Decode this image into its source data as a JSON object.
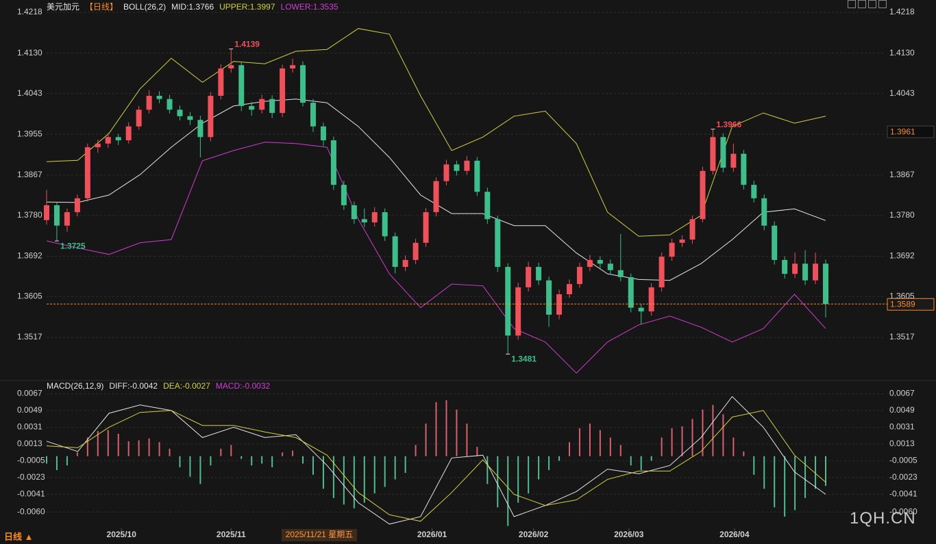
{
  "chart_data": [
    {
      "type": "candlestick",
      "title": "美元加元",
      "period": "【日线】",
      "indicator": "BOLL(26,2)",
      "up_color": "#f0505a",
      "down_color": "#3cbf8a",
      "open": [
        1.377,
        1.3802,
        1.3758,
        1.3787,
        1.3817,
        1.3927,
        1.3935,
        1.3949,
        1.3942,
        1.3972,
        1.4008,
        1.4038,
        1.4031,
        1.4008,
        1.3994,
        1.3986,
        1.3949,
        1.4038,
        1.4097,
        1.4104,
        1.4016,
        1.4008,
        1.4031,
        1.4001,
        1.4097,
        1.4104,
        1.4023,
        1.3972,
        1.3942,
        1.3846,
        1.3802,
        1.3772,
        1.3765,
        1.3787,
        1.3735,
        1.3669,
        1.3684,
        1.3721,
        1.3787,
        1.3854,
        1.389,
        1.3876,
        1.3898,
        1.3831,
        1.3772,
        1.3669,
        1.3521,
        1.3625,
        1.3669,
        1.364,
        1.3566,
        1.361,
        1.3632,
        1.3669,
        1.3684,
        1.3676,
        1.3662,
        1.3647,
        1.3581,
        1.3573,
        1.3625,
        1.3691,
        1.3721,
        1.3728,
        1.3772,
        1.3876,
        1.3949,
        1.3883,
        1.3913,
        1.3846,
        1.3817,
        1.3758,
        1.3684,
        1.3654,
        1.3676,
        1.364,
        1.3676
      ],
      "high": [
        1.3835,
        1.381,
        1.3795,
        1.3825,
        1.3935,
        1.3944,
        1.3958,
        1.3956,
        1.3981,
        1.4016,
        1.405,
        1.4048,
        1.404,
        1.4017,
        1.4003,
        1.3995,
        1.4046,
        1.4106,
        1.4139,
        1.4112,
        1.4025,
        1.404,
        1.4039,
        1.4105,
        1.4118,
        1.4112,
        1.4031,
        1.398,
        1.395,
        1.3855,
        1.381,
        1.3795,
        1.3798,
        1.3795,
        1.3743,
        1.3694,
        1.373,
        1.3796,
        1.3862,
        1.39,
        1.3898,
        1.3908,
        1.3906,
        1.384,
        1.378,
        1.3677,
        1.3635,
        1.368,
        1.3678,
        1.3648,
        1.362,
        1.3642,
        1.3678,
        1.3695,
        1.3692,
        1.3685,
        1.374,
        1.3655,
        1.359,
        1.3634,
        1.37,
        1.373,
        1.3737,
        1.378,
        1.3885,
        1.3966,
        1.3957,
        1.3935,
        1.3921,
        1.3855,
        1.3825,
        1.3767,
        1.3692,
        1.37,
        1.3705,
        1.37,
        1.3685
      ],
      "low": [
        1.376,
        1.3725,
        1.3745,
        1.3778,
        1.381,
        1.3915,
        1.3926,
        1.3932,
        1.3935,
        1.3965,
        1.4,
        1.4022,
        1.4,
        1.3985,
        1.3975,
        1.3905,
        1.394,
        1.403,
        1.4088,
        1.4005,
        1.3995,
        1.4,
        1.399,
        1.3992,
        1.4088,
        1.4015,
        1.396,
        1.393,
        1.3835,
        1.3792,
        1.3762,
        1.3755,
        1.3756,
        1.3725,
        1.3655,
        1.366,
        1.3675,
        1.3712,
        1.3778,
        1.3845,
        1.3866,
        1.3868,
        1.3822,
        1.3762,
        1.3658,
        1.3481,
        1.3512,
        1.3616,
        1.363,
        1.354,
        1.3556,
        1.3602,
        1.3624,
        1.366,
        1.3666,
        1.3652,
        1.3638,
        1.3571,
        1.3545,
        1.3564,
        1.3616,
        1.3682,
        1.3712,
        1.3719,
        1.3765,
        1.3868,
        1.3873,
        1.3874,
        1.3836,
        1.3808,
        1.3748,
        1.3674,
        1.3644,
        1.3645,
        1.363,
        1.3632,
        1.356
      ],
      "close": [
        1.3802,
        1.3758,
        1.3787,
        1.3817,
        1.3927,
        1.3935,
        1.3949,
        1.3942,
        1.3972,
        1.4008,
        1.4038,
        1.4031,
        1.4008,
        1.3994,
        1.3986,
        1.3949,
        1.4038,
        1.4097,
        1.4104,
        1.4016,
        1.4008,
        1.4031,
        1.4001,
        1.4097,
        1.4104,
        1.4023,
        1.3972,
        1.3942,
        1.3846,
        1.3802,
        1.3772,
        1.3765,
        1.3787,
        1.3735,
        1.3669,
        1.3684,
        1.3721,
        1.3787,
        1.3854,
        1.389,
        1.3876,
        1.3898,
        1.3831,
        1.3772,
        1.3669,
        1.3521,
        1.3625,
        1.3669,
        1.364,
        1.3566,
        1.361,
        1.3632,
        1.3669,
        1.3684,
        1.3676,
        1.3662,
        1.3647,
        1.3581,
        1.3573,
        1.3625,
        1.3691,
        1.3721,
        1.3728,
        1.3772,
        1.3876,
        1.3949,
        1.3883,
        1.3913,
        1.3846,
        1.3817,
        1.3758,
        1.3684,
        1.3654,
        1.3676,
        1.364,
        1.3676,
        1.3589
      ],
      "series": [
        {
          "name": "MID:1.3766",
          "color": "#e6e6e6",
          "values": [
            1.3809,
            1.3808,
            1.3824,
            1.3868,
            1.3927,
            1.3979,
            1.4016,
            1.4026,
            1.4031,
            1.4023,
            1.3972,
            1.3905,
            1.3824,
            1.3784,
            1.3784,
            1.3758,
            1.3758,
            1.3699,
            1.3654,
            1.3642,
            1.364,
            1.3676,
            1.3728,
            1.3787,
            1.3794,
            1.3769
          ]
        },
        {
          "name": "UPPER:1.3997",
          "color": "#d2d23c",
          "values": [
            1.3896,
            1.3899,
            1.3957,
            1.4053,
            1.4119,
            1.4067,
            1.4112,
            1.4107,
            1.4134,
            1.4138,
            1.4183,
            1.4171,
            1.4038,
            1.392,
            1.3949,
            1.3994,
            1.4005,
            1.3935,
            1.3787,
            1.3735,
            1.3738,
            1.378,
            1.3972,
            1.4001,
            1.3979,
            1.3994
          ]
        },
        {
          "name": "LOWER:1.3535",
          "color": "#d23cd2",
          "values": [
            1.3725,
            1.371,
            1.3696,
            1.3721,
            1.3728,
            1.3898,
            1.392,
            1.3938,
            1.3935,
            1.3927,
            1.3772,
            1.3654,
            1.3581,
            1.3632,
            1.3628,
            1.3536,
            1.3507,
            1.344,
            1.3507,
            1.3544,
            1.3563,
            1.3539,
            1.3507,
            1.3536,
            1.361,
            1.3536
          ]
        }
      ],
      "ylim": [
        1.3433,
        1.4218
      ],
      "yticks": [
        1.4218,
        {
          "value": 1.413,
          "label": "1.4130"
        },
        1.4043,
        1.3955,
        1.3867,
        {
          "value": 1.378,
          "label": "1.3780"
        },
        1.3692,
        1.3605,
        1.3517
      ],
      "grid": true,
      "crosshair_price": 1.3961
    },
    {
      "type": "macd",
      "title": "MACD(26,12,9)",
      "series": [
        {
          "name": "DIFF:-0.0042",
          "color": "#e6e6e6",
          "values": [
            0.0016,
            0.0005,
            0.0046,
            0.0055,
            0.0049,
            0.002,
            0.0031,
            0.002,
            0.0023,
            -0.001,
            -0.005,
            -0.0073,
            -0.0065,
            -0.0002,
            0.0001,
            -0.0065,
            -0.0053,
            -0.0038,
            -0.0014,
            -0.0019,
            -0.001,
            0.002,
            0.0064,
            0.0031,
            -0.0017,
            -0.0041
          ]
        },
        {
          "name": "DEA:-0.0027",
          "color": "#d2d23c",
          "values": [
            0.0011,
            0.0009,
            0.0031,
            0.0047,
            0.0049,
            0.0033,
            0.0033,
            0.0026,
            0.002,
            0.0001,
            -0.0039,
            -0.0063,
            -0.007,
            -0.0039,
            -0.0004,
            -0.0041,
            -0.0053,
            -0.0047,
            -0.0025,
            -0.0016,
            -0.0016,
            0.0005,
            0.0042,
            0.0049,
            0.0001,
            -0.0028
          ]
        }
      ],
      "histogram": {
        "name": "MACD:-0.0032",
        "color": "#d23cd2",
        "up_color": "#d9606c",
        "down_color": "#4cbf92",
        "values": [
          -0.0008,
          -0.0015,
          -0.001,
          0.0004,
          0.002,
          0.0027,
          0.0028,
          0.0024,
          0.0016,
          0.0017,
          0.0019,
          0.0015,
          0.0008,
          -0.0012,
          -0.0022,
          -0.003,
          -0.001,
          0.0008,
          0.0012,
          -0.0003,
          -0.001,
          -0.0008,
          -0.0012,
          0.0004,
          0.0006,
          -0.0008,
          -0.002,
          -0.0035,
          -0.0045,
          -0.0052,
          -0.0056,
          -0.005,
          -0.004,
          -0.0033,
          -0.0025,
          -0.0018,
          0.0012,
          0.0035,
          0.0058,
          0.006,
          0.005,
          0.0035,
          0.001,
          -0.003,
          -0.0055,
          -0.0075,
          -0.005,
          -0.004,
          -0.0025,
          -0.0015,
          -0.0005,
          0.0015,
          0.003,
          0.0035,
          0.0028,
          0.002,
          0.0012,
          -0.001,
          -0.0015,
          -0.0005,
          0.002,
          0.003,
          0.0032,
          0.004,
          0.005,
          0.0055,
          0.0045,
          0.002,
          0.0005,
          -0.002,
          -0.0035,
          -0.0055,
          -0.0065,
          -0.0058,
          -0.0045,
          -0.0035,
          -0.0032
        ]
      },
      "ylim": [
        -0.0076,
        0.0071
      ],
      "yticks": [
        0.0067,
        0.0049,
        0.0031,
        0.0013,
        -0.0005,
        -0.0023,
        -0.0041,
        {
          "value": -0.006,
          "label": "-0.0060"
        }
      ],
      "grid": true,
      "xticks": [
        {
          "value": 7.3,
          "label": "2025/10"
        },
        {
          "value": 18,
          "label": "2025/11"
        },
        {
          "value": 37.6,
          "label": "2026/01"
        },
        {
          "value": 47.5,
          "label": "2026/02"
        },
        {
          "value": 56.8,
          "label": "2026/03"
        },
        {
          "value": 67.1,
          "label": "2026/04"
        }
      ],
      "crosshair": {
        "value": 26.6,
        "label": "2025/11/21 星期五"
      }
    }
  ],
  "footer_period": "日线 ▲",
  "watermark": "1QH.CN"
}
